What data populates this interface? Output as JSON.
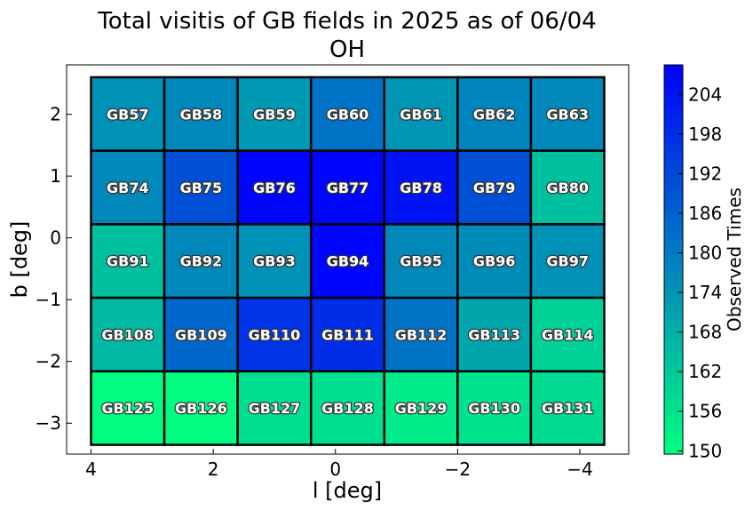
{
  "chart_data": {
    "type": "heatmap",
    "title": "Total visitis of GB fields in 2025 as of 06/04",
    "subtitle": "OH",
    "xlabel": "l [deg]",
    "ylabel": "b [deg]",
    "xlim": [
      4.4,
      -4.8
    ],
    "ylim": [
      -3.5,
      2.8
    ],
    "x_inverted": true,
    "x_ticks": [
      4,
      2,
      0,
      -2,
      -4
    ],
    "x_tick_labels": [
      "4",
      "2",
      "0",
      "−2",
      "−4"
    ],
    "y_ticks": [
      2,
      1,
      0,
      -1,
      -2,
      -3
    ],
    "y_tick_labels": [
      "2",
      "1",
      "0",
      "−1",
      "−2",
      "−3"
    ],
    "grid": false,
    "cell_l_edges": [
      4.0,
      2.8,
      1.6,
      0.4,
      -0.8,
      -2.0,
      -3.2,
      -4.4
    ],
    "cell_b_edges": [
      2.6,
      1.41,
      0.22,
      -0.97,
      -2.16,
      -3.35
    ],
    "fields": [
      [
        "GB57",
        "GB58",
        "GB59",
        "GB60",
        "GB61",
        "GB62",
        "GB63"
      ],
      [
        "GB74",
        "GB75",
        "GB76",
        "GB77",
        "GB78",
        "GB79",
        "GB80"
      ],
      [
        "GB91",
        "GB92",
        "GB93",
        "GB94",
        "GB95",
        "GB96",
        "GB97"
      ],
      [
        "GB108",
        "GB109",
        "GB110",
        "GB111",
        "GB112",
        "GB113",
        "GB114"
      ],
      [
        "GB125",
        "GB126",
        "GB127",
        "GB128",
        "GB129",
        "GB130",
        "GB131"
      ]
    ],
    "values": [
      [
        175,
        177,
        173,
        182,
        174,
        178,
        177
      ],
      [
        177,
        190,
        207,
        207,
        204,
        190,
        164
      ],
      [
        164,
        177,
        175,
        207,
        177,
        176,
        175
      ],
      [
        166,
        185,
        197,
        198,
        182,
        170,
        160
      ],
      [
        150,
        150,
        157,
        157,
        154,
        156,
        158
      ]
    ],
    "colorbar": {
      "label": "Observed Times",
      "vmin": 149.5,
      "vmax": 208.5,
      "ticks": [
        150,
        156,
        162,
        168,
        174,
        180,
        186,
        192,
        198,
        204
      ],
      "colors": {
        "low": "#00ff80",
        "high": "#0000ff"
      }
    },
    "cell_border_color": "#000000",
    "cell_label_color": "#ffffff"
  }
}
